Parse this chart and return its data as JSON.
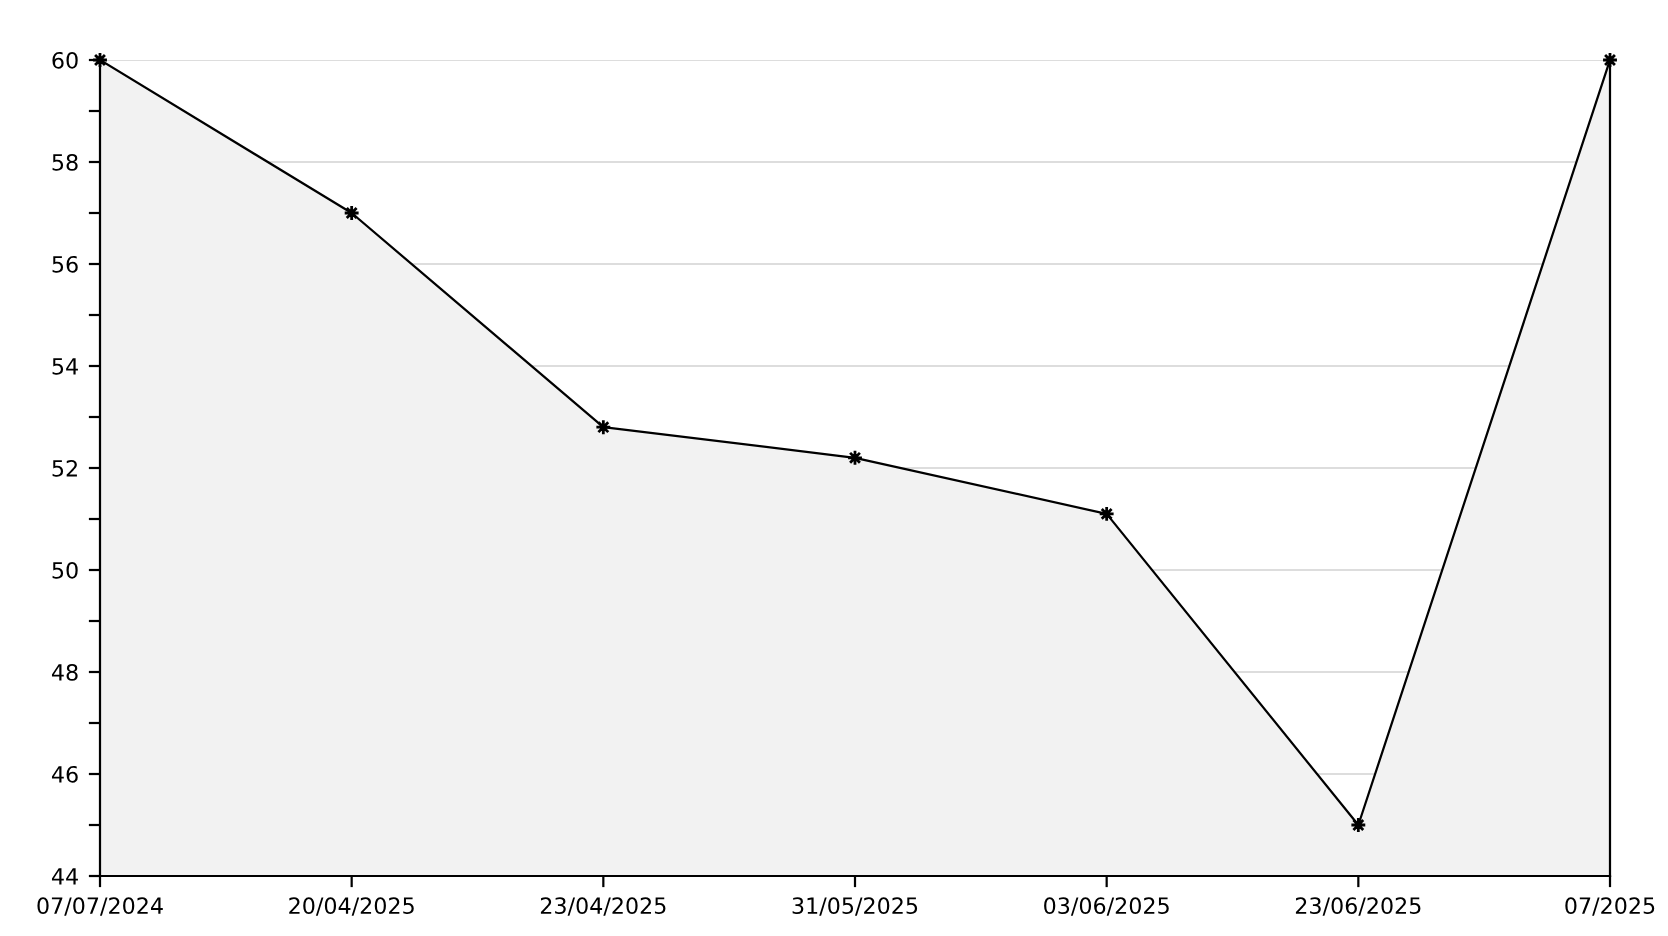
{
  "chart_data": {
    "type": "area",
    "categories": [
      "07/07/2024",
      "20/04/2025",
      "23/04/2025",
      "31/05/2025",
      "03/06/2025",
      "23/06/2025",
      "07/2025"
    ],
    "series": [
      {
        "color": "#000000",
        "values": [
          60,
          57,
          52.8,
          52.2,
          51.1,
          45,
          60
        ]
      }
    ],
    "ylim": [
      44,
      60
    ],
    "yticks": [
      44,
      {
        "value": 45,
        "label": null
      },
      46,
      {
        "value": 47,
        "label": null
      },
      48,
      {
        "value": 49,
        "label": null
      },
      50,
      {
        "value": 51,
        "label": null
      },
      52,
      {
        "value": 53,
        "label": null
      },
      54,
      {
        "value": 55,
        "label": null
      },
      56,
      {
        "value": 57,
        "label": null
      },
      58,
      {
        "value": 59,
        "label": null
      },
      60
    ],
    "grid": "y",
    "marker": "star",
    "line_style": "solid",
    "legend": false
  }
}
